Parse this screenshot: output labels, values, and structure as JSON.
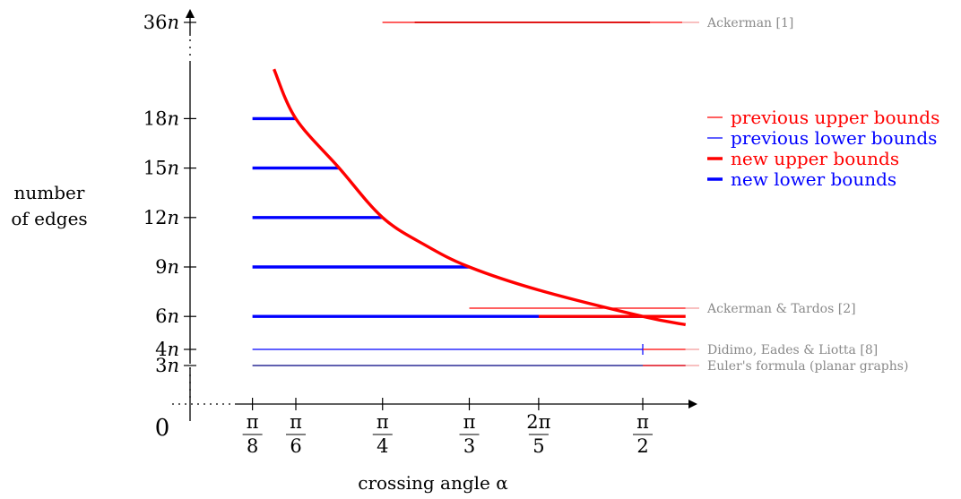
{
  "chart_data": {
    "type": "line",
    "title": "",
    "xlabel": "crossing angle α",
    "ylabel_lines": [
      "number",
      "of edges"
    ],
    "origin_label": "0",
    "x_ticks": [
      {
        "num": "π",
        "den": "8",
        "value": 0.3927
      },
      {
        "num": "π",
        "den": "6",
        "value": 0.5236
      },
      {
        "num": "π",
        "den": "4",
        "value": 0.7854
      },
      {
        "num": "π",
        "den": "3",
        "value": 1.0472
      },
      {
        "num": "2π",
        "den": "5",
        "value": 1.2566
      },
      {
        "num": "π",
        "den": "2",
        "value": 1.5708
      }
    ],
    "y_ticks": [
      {
        "label": "3n",
        "value": 3
      },
      {
        "label": "4n",
        "value": 4
      },
      {
        "label": "6n",
        "value": 6
      },
      {
        "label": "9n",
        "value": 9
      },
      {
        "label": "12n",
        "value": 12
      },
      {
        "label": "15n",
        "value": 15
      },
      {
        "label": "18n",
        "value": 18
      },
      {
        "label": "36n",
        "value": 36
      }
    ],
    "x_range_radians": [
      0.3,
      1.75
    ],
    "legend": {
      "placement": "right",
      "entries": [
        {
          "label": "previous upper bounds",
          "color": "#ff0000",
          "style": "thin"
        },
        {
          "label": "previous lower bounds",
          "color": "#0000ff",
          "style": "thin"
        },
        {
          "label": "new upper bounds",
          "color": "#ff0000",
          "style": "thick"
        },
        {
          "label": "new lower bounds",
          "color": "#0000ff",
          "style": "thick"
        }
      ]
    },
    "new_upper_bound_curve": {
      "color": "#ff0000",
      "points": [
        {
          "x": 0.4576,
          "y": 21.0
        },
        {
          "x": 0.5236,
          "y": 18.0
        },
        {
          "x": 0.6545,
          "y": 15.0
        },
        {
          "x": 0.7854,
          "y": 12.0
        },
        {
          "x": 0.9163,
          "y": 10.3
        },
        {
          "x": 1.0472,
          "y": 9.0
        },
        {
          "x": 1.2566,
          "y": 7.6
        },
        {
          "x": 1.5708,
          "y": 6.0
        },
        {
          "x": 1.7,
          "y": 5.5
        }
      ]
    },
    "new_lower_bounds": [
      {
        "y": 18,
        "x_start": 0.3927,
        "x_end": 0.5236
      },
      {
        "y": 15,
        "x_start": 0.3927,
        "x_end": 0.6545
      },
      {
        "y": 12,
        "x_start": 0.3927,
        "x_end": 0.7854
      },
      {
        "y": 9,
        "x_start": 0.3927,
        "x_end": 1.0472
      },
      {
        "y": 6,
        "x_start": 0.3927,
        "x_end": 1.5708
      }
    ],
    "new_upper_bound_segment": {
      "y": 6,
      "x_start": 1.2566,
      "x_end": 1.7
    },
    "previous_upper_bounds": [
      {
        "y": 36,
        "x_start": 0.785,
        "x_end": 1.69,
        "reference": "Ackerman [1]"
      },
      {
        "y": 6.5,
        "x_start": 1.0472,
        "x_end": 1.7,
        "reference": "Ackerman & Tardos [2]"
      },
      {
        "y": 4,
        "x_start": 1.5708,
        "x_end": 1.7,
        "reference": "Didimo, Eades & Liotta [8]"
      },
      {
        "y": 3,
        "x_start": 1.5708,
        "x_end": 1.7,
        "reference": "Euler's formula (planar graphs)"
      }
    ],
    "previous_lower_bounds": [
      {
        "y": 4,
        "x_start": 0.3927,
        "x_end": 1.5708
      },
      {
        "y": 3,
        "x_start": 0.3927,
        "x_end": 1.7
      }
    ],
    "colors": {
      "upper": "#ff0000",
      "lower": "#0000ff",
      "reference_text": "#8a8a8a",
      "euler_line": "#000080"
    }
  }
}
